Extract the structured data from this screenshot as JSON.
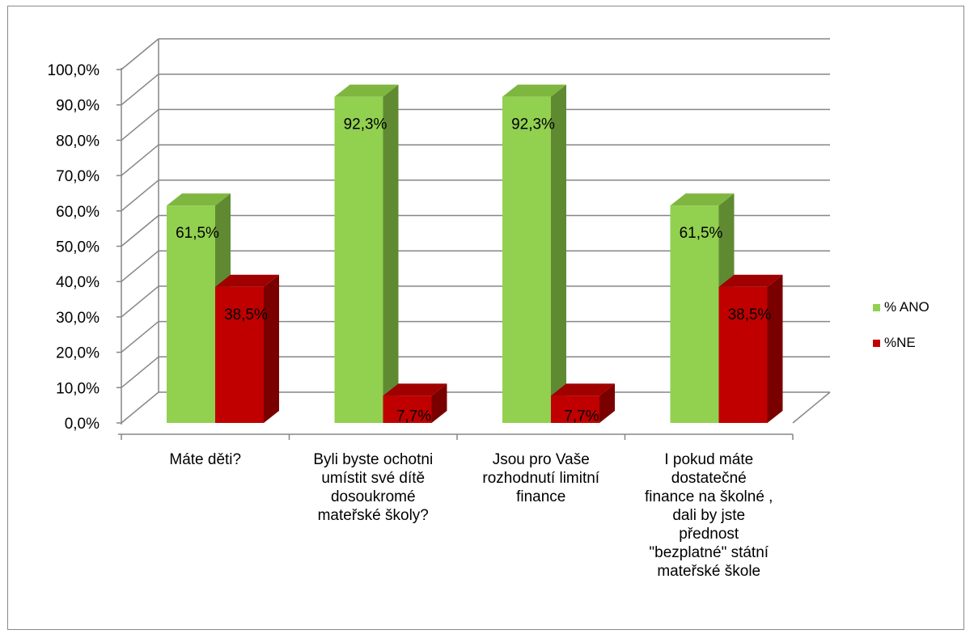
{
  "chart_data": {
    "type": "bar",
    "categories": [
      "Máte děti?",
      "Byli byste ochotni umístit své dítě dosoukromé mateřské školy?",
      "Jsou pro Vaše rozhodnutí limitní finance",
      "I pokud máte dostatečné finance na školné , dali by jste přednost \"bezplatné\" státní mateřské škole"
    ],
    "category_lines": [
      [
        "Máte děti?"
      ],
      [
        "Byli byste ochotni",
        "umístit své dítě",
        "dosoukromé",
        "mateřské školy?"
      ],
      [
        "Jsou pro Vaše",
        "rozhodnutí limitní",
        "finance"
      ],
      [
        "I pokud máte",
        "dostatečné",
        "finance na školné ,",
        "dali by jste",
        "přednost",
        "\"bezplatné\" státní",
        "mateřské škole"
      ]
    ],
    "series": [
      {
        "name": "% ANO",
        "values": [
          61.5,
          92.3,
          92.3,
          61.5
        ],
        "labels": [
          "61,5%",
          "92,3%",
          "92,3%",
          "61,5%"
        ],
        "color": "#92d050",
        "side_color": "#5f8a32",
        "top_color": "#7fb640"
      },
      {
        "name": "%NE",
        "values": [
          38.5,
          7.7,
          7.7,
          38.5
        ],
        "labels": [
          "38,5%",
          "7,7%",
          "7,7%",
          "38,5%"
        ],
        "color": "#c00000",
        "side_color": "#7a0000",
        "top_color": "#a00000"
      }
    ],
    "y_ticks": [
      "0,0%",
      "10,0%",
      "20,0%",
      "30,0%",
      "40,0%",
      "50,0%",
      "60,0%",
      "70,0%",
      "80,0%",
      "90,0%",
      "100,0%"
    ],
    "ylim": [
      0,
      100
    ],
    "grid": true,
    "legend_position": "right",
    "three_d": true
  }
}
